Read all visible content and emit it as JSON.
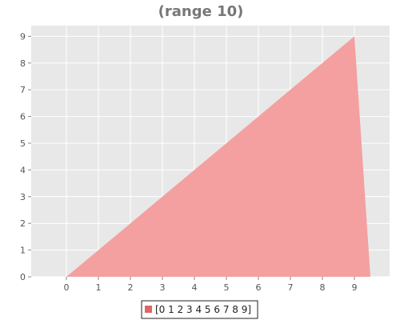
{
  "chart_data": {
    "type": "area",
    "title": "(range 10)",
    "x": [
      0,
      1,
      2,
      3,
      4,
      5,
      6,
      7,
      8,
      9,
      9.5
    ],
    "series": [
      {
        "name": "[0 1 2 3 4 5 6 7 8 9]",
        "values": [
          0,
          1,
          2,
          3,
          4,
          5,
          6,
          7,
          8,
          9,
          0
        ],
        "color": "#f4a0a0",
        "legend_color": "#e06666"
      }
    ],
    "xticks": [
      "0",
      "1",
      "2",
      "3",
      "4",
      "5",
      "6",
      "7",
      "8",
      "9"
    ],
    "yticks": [
      "0",
      "1",
      "2",
      "3",
      "4",
      "5",
      "6",
      "7",
      "8",
      "9"
    ],
    "xlim": [
      -1.1,
      10.1
    ],
    "ylim": [
      0,
      9.4
    ],
    "grid": true,
    "legend_position": "bottom-center",
    "colors": {
      "plot_background": "#e8e8e8",
      "grid": "#ffffff",
      "title": "#777777",
      "tick_label": "#555555"
    }
  }
}
